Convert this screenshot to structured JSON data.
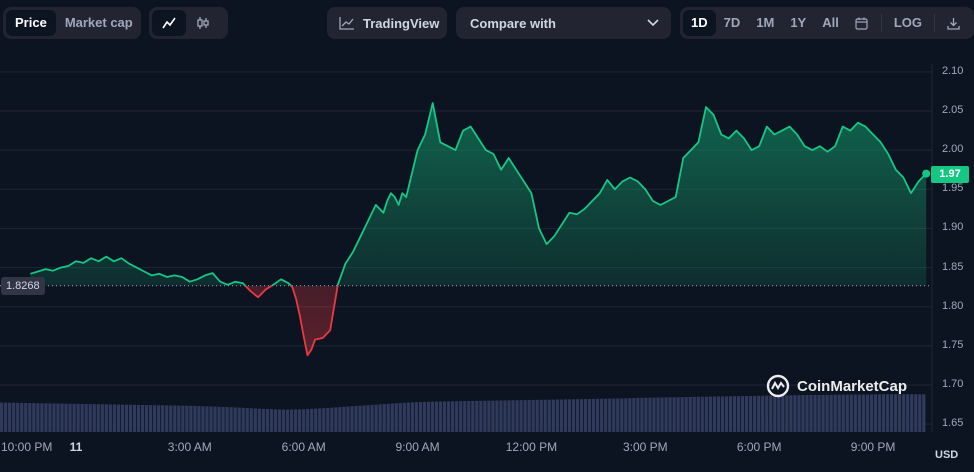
{
  "toolbar": {
    "price_label": "Price",
    "market_cap_label": "Market cap",
    "line_chart_icon": "line-chart-icon",
    "candle_chart_icon": "candlestick-icon",
    "tradingview_label": "TradingView",
    "compare_label": "Compare with",
    "range_options": [
      "1D",
      "7D",
      "1M",
      "1Y",
      "All"
    ],
    "selected_range": "1D",
    "calendar_icon": "calendar-icon",
    "log_label": "LOG",
    "download_icon": "download-icon"
  },
  "colors": {
    "background": "#0d1421",
    "up": "#16c784",
    "down": "#ea3943",
    "volume": "#2f3a5c",
    "grid": "#1e2537"
  },
  "chart_data": {
    "type": "area",
    "ylabel": "USD",
    "ylim": [
      1.64,
      2.11
    ],
    "yticks": [
      "2.10",
      "2.05",
      "2.00",
      "1.95",
      "1.90",
      "1.85",
      "1.80",
      "1.75",
      "1.70",
      "1.65"
    ],
    "xticks": [
      "10:00 PM",
      "11",
      "3:00 AM",
      "6:00 AM",
      "9:00 AM",
      "12:00 PM",
      "3:00 PM",
      "6:00 PM",
      "9:00 PM"
    ],
    "xlim_hours": [
      22,
      46.5
    ],
    "reference_price": 1.8268,
    "reference_label": "1.8268",
    "current_price": 1.97,
    "current_label": "1.97",
    "price_series": {
      "hours": [
        22.8,
        23.0,
        23.2,
        23.4,
        23.6,
        23.8,
        24.0,
        24.2,
        24.4,
        24.6,
        24.8,
        25.0,
        25.2,
        25.4,
        25.6,
        25.8,
        26.0,
        26.2,
        26.4,
        26.6,
        26.8,
        27.0,
        27.2,
        27.4,
        27.6,
        27.8,
        28.0,
        28.2,
        28.4,
        28.6,
        28.8,
        29.0,
        29.2,
        29.4,
        29.6,
        29.7,
        29.8,
        29.9,
        30.0,
        30.1,
        30.2,
        30.3,
        30.5,
        30.7,
        30.9,
        31.1,
        31.3,
        31.5,
        31.7,
        31.9,
        32.1,
        32.2,
        32.3,
        32.4,
        32.5,
        32.6,
        32.7,
        32.8,
        33.0,
        33.2,
        33.4,
        33.6,
        33.8,
        34.0,
        34.2,
        34.4,
        34.6,
        34.8,
        35.0,
        35.2,
        35.4,
        35.6,
        35.8,
        36.0,
        36.2,
        36.4,
        36.6,
        36.8,
        37.0,
        37.2,
        37.4,
        37.6,
        37.8,
        38.0,
        38.2,
        38.4,
        38.6,
        38.8,
        39.0,
        39.2,
        39.4,
        39.6,
        39.8,
        40.0,
        40.2,
        40.4,
        40.6,
        40.8,
        41.0,
        41.2,
        41.4,
        41.6,
        41.8,
        42.0,
        42.2,
        42.4,
        42.6,
        42.8,
        43.0,
        43.2,
        43.4,
        43.6,
        43.8,
        44.0,
        44.2,
        44.4,
        44.6,
        44.8,
        45.0,
        45.2,
        45.4,
        45.6,
        45.8,
        46.0,
        46.2,
        46.4
      ],
      "values": [
        1.842,
        1.845,
        1.848,
        1.846,
        1.85,
        1.852,
        1.858,
        1.856,
        1.862,
        1.858,
        1.864,
        1.858,
        1.862,
        1.855,
        1.85,
        1.845,
        1.84,
        1.842,
        1.838,
        1.84,
        1.838,
        1.832,
        1.835,
        1.84,
        1.843,
        1.832,
        1.828,
        1.832,
        1.83,
        1.82,
        1.812,
        1.822,
        1.828,
        1.835,
        1.83,
        1.825,
        1.81,
        1.788,
        1.762,
        1.738,
        1.745,
        1.758,
        1.76,
        1.77,
        1.828,
        1.855,
        1.87,
        1.89,
        1.91,
        1.93,
        1.92,
        1.935,
        1.945,
        1.94,
        1.93,
        1.945,
        1.94,
        1.96,
        2.0,
        2.02,
        2.06,
        2.01,
        2.005,
        2.0,
        2.025,
        2.03,
        2.015,
        2.0,
        1.995,
        1.975,
        1.99,
        1.975,
        1.96,
        1.945,
        1.9,
        1.88,
        1.89,
        1.905,
        1.92,
        1.918,
        1.925,
        1.935,
        1.945,
        1.962,
        1.95,
        1.96,
        1.965,
        1.96,
        1.95,
        1.935,
        1.93,
        1.935,
        1.94,
        1.99,
        2.0,
        2.01,
        2.055,
        2.045,
        2.02,
        2.015,
        2.025,
        2.015,
        2.0,
        2.005,
        2.03,
        2.02,
        2.025,
        2.03,
        2.02,
        2.005,
        2.0,
        2.005,
        1.998,
        2.005,
        2.03,
        2.025,
        2.035,
        2.03,
        2.02,
        2.01,
        1.995,
        1.975,
        1.965,
        1.945,
        1.96,
        1.97
      ]
    },
    "volume_series": {
      "start_hour": 22,
      "end_hour": 46.4,
      "relative_values": [
        0.92,
        0.91,
        0.9,
        0.89,
        0.88,
        0.87,
        0.86,
        0.85,
        0.84,
        0.83,
        0.82,
        0.8,
        0.78,
        0.75,
        0.72,
        0.7,
        0.71,
        0.74,
        0.78,
        0.82,
        0.86,
        0.9,
        0.93,
        0.95,
        0.96,
        0.97,
        0.98,
        0.99,
        1.0,
        1.01,
        1.02,
        1.03,
        1.04,
        1.05,
        1.07,
        1.08,
        1.09,
        1.1,
        1.11,
        1.12,
        1.13,
        1.14,
        1.15,
        1.16,
        1.16,
        1.17,
        1.17,
        1.18,
        1.18,
        1.18
      ]
    }
  },
  "watermark": {
    "text": "CoinMarketCap",
    "logo_icon": "coinmarketcap-logo-icon"
  }
}
